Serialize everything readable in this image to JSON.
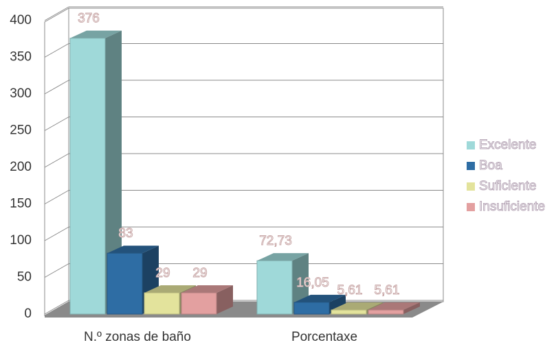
{
  "chart_data": {
    "type": "bar3d",
    "categories": [
      "N.º zonas de baño",
      "Porcentaxe"
    ],
    "series": [
      {
        "name": "Excelente",
        "color": "#9fd9d9",
        "values": [
          376,
          72.73
        ],
        "value_labels": [
          "376",
          "72,73"
        ]
      },
      {
        "name": "Boa",
        "color": "#2e6da4",
        "values": [
          83,
          16.05
        ],
        "value_labels": [
          "83",
          "16,05"
        ]
      },
      {
        "name": "Suficiente",
        "color": "#e3e39c",
        "values": [
          29,
          5.61
        ],
        "value_labels": [
          "29",
          "5,61"
        ]
      },
      {
        "name": "Insuficiente",
        "color": "#e3a0a0",
        "values": [
          29,
          5.61
        ],
        "value_labels": [
          "29",
          "5,61"
        ]
      }
    ],
    "ylim": [
      0,
      400
    ],
    "yticks": [
      0,
      50,
      100,
      150,
      200,
      250,
      300,
      350,
      400
    ],
    "grid": true,
    "legend": "right"
  }
}
